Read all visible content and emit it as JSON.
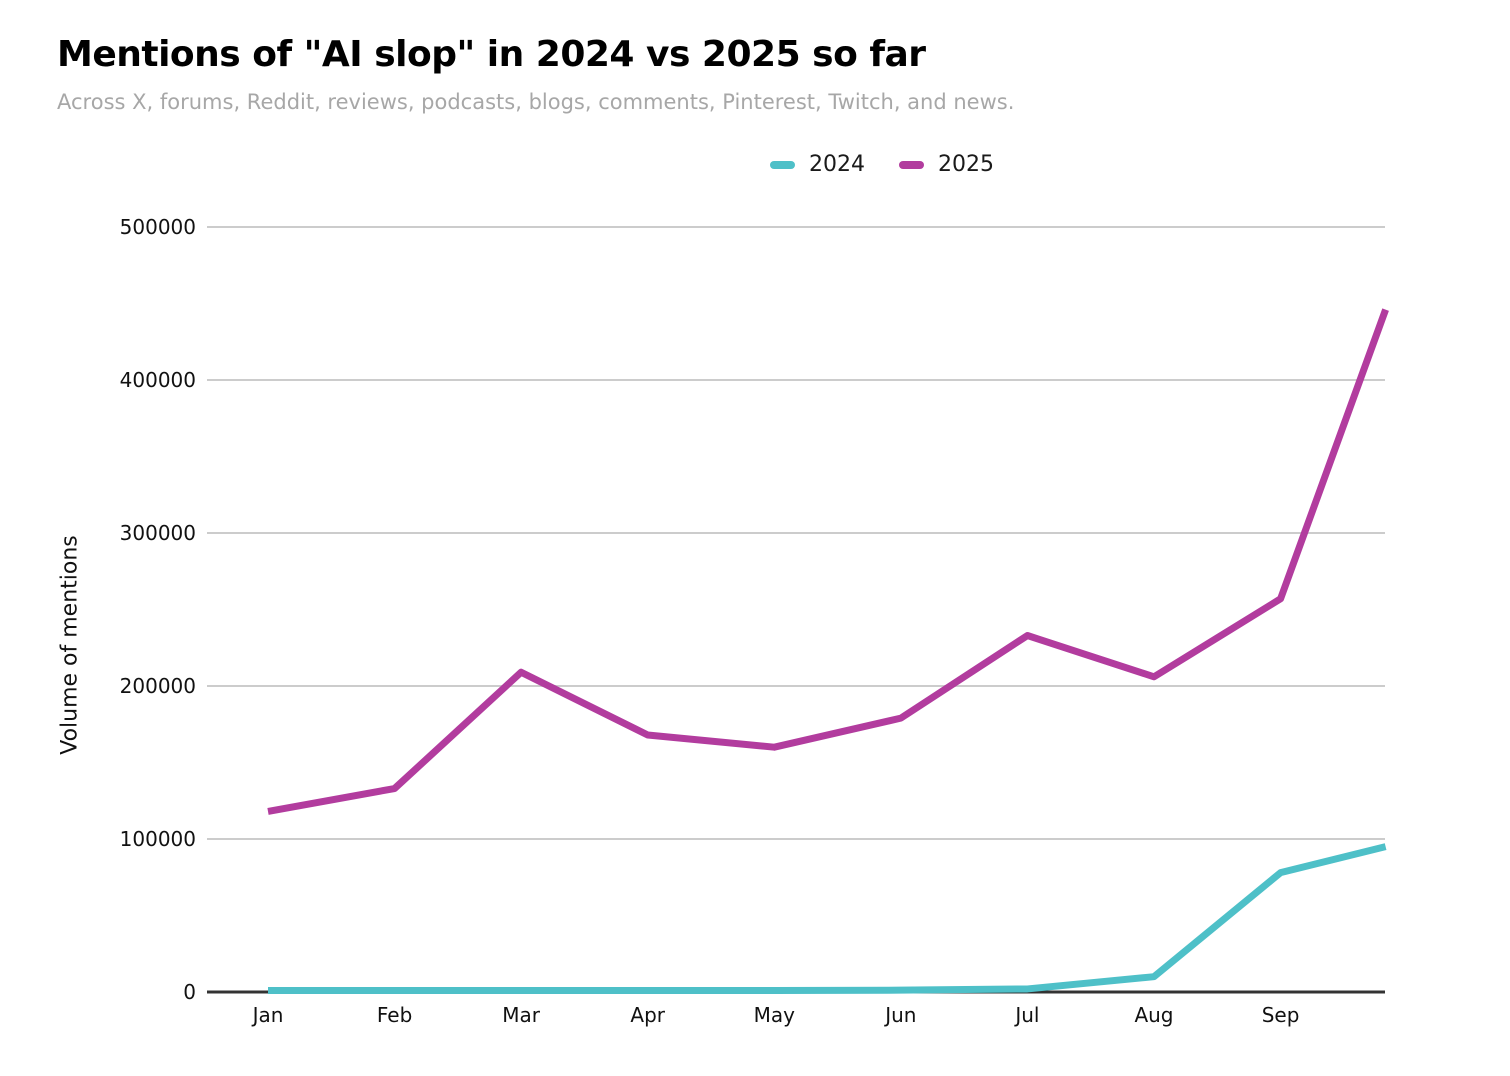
{
  "header": {
    "title": "Mentions of \"AI slop\" in 2024 vs 2025 so far",
    "subtitle": "Across X, forums, Reddit, reviews, podcasts, blogs, comments, Pinterest, Twitch, and news."
  },
  "colors": {
    "series_2024": "#4EC0C8",
    "series_2025": "#B23C9E",
    "gridline": "#CCCCCC",
    "axis": "#333333",
    "title_text": "#000000",
    "subtitle_text": "#A7A7A7"
  },
  "chart_data": {
    "type": "line",
    "title": "Mentions of \"AI slop\" in 2024 vs 2025 so far",
    "subtitle": "Across X, forums, Reddit, reviews, podcasts, blogs, comments, Pinterest, Twitch, and news.",
    "xlabel": "",
    "ylabel": "Volume of mentions",
    "x_tick_labels": [
      "Jan",
      "Feb",
      "Mar",
      "Apr",
      "May",
      "Jun",
      "Jul",
      "Aug",
      "Sep"
    ],
    "x_positions": [
      0,
      1,
      2,
      3,
      4,
      5,
      6,
      7,
      8,
      8.83
    ],
    "yticks": [
      0,
      100000,
      200000,
      300000,
      400000,
      500000
    ],
    "ylim": [
      0,
      500000
    ],
    "grid": "horizontal",
    "legend_position": "top-center",
    "series": [
      {
        "name": "2024",
        "color": "#4EC0C8",
        "values": [
          1000,
          1000,
          1000,
          1000,
          1000,
          1200,
          2000,
          10000,
          78000,
          95000
        ]
      },
      {
        "name": "2025",
        "color": "#B23C9E",
        "values": [
          118000,
          133000,
          209000,
          168000,
          160000,
          179000,
          233000,
          206000,
          257000,
          446000
        ]
      }
    ]
  }
}
